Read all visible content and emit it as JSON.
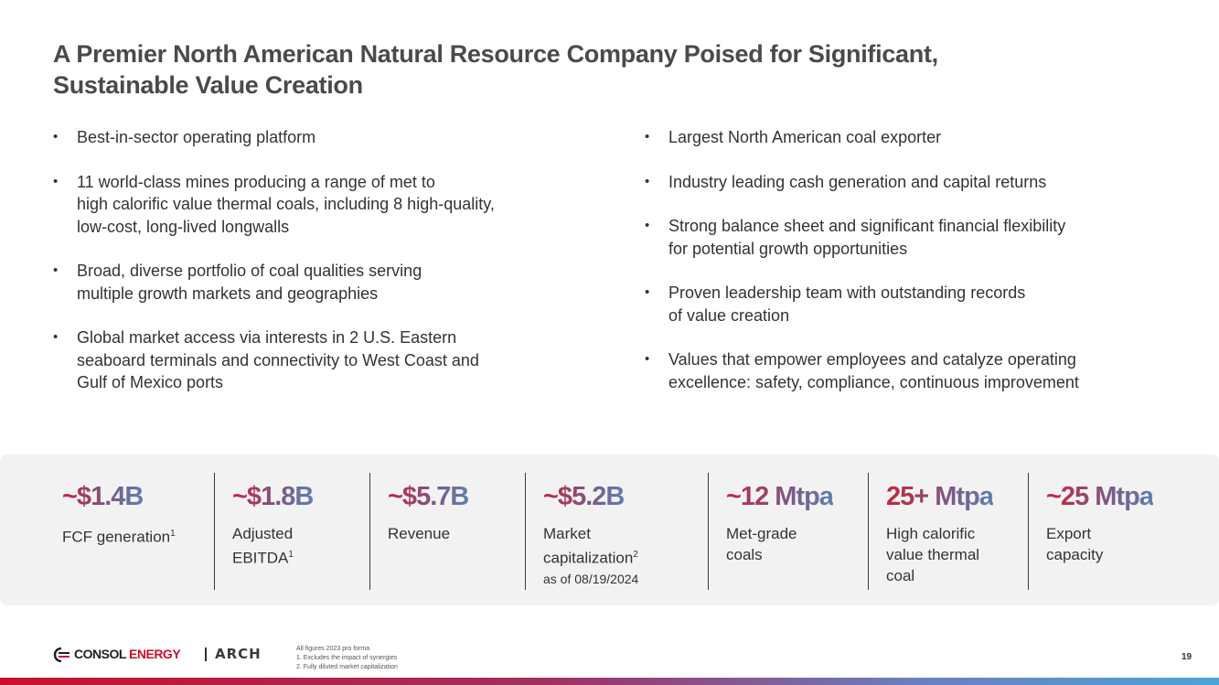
{
  "title": {
    "line1": "A Premier North American Natural Resource Company Poised for Significant,",
    "line2": "Sustainable Value Creation"
  },
  "left_bullets": [
    {
      "lines": [
        "Best-in-sector operating platform"
      ]
    },
    {
      "lines": [
        "11 world-class mines producing a range of met to",
        "high calorific value thermal coals, including 8 high-quality,",
        "low-cost, long-lived longwalls"
      ]
    },
    {
      "lines": [
        "Broad, diverse portfolio of coal qualities serving",
        "multiple growth markets and geographies"
      ]
    },
    {
      "lines": [
        "Global market access via interests in 2 U.S. Eastern",
        "seaboard terminals and connectivity to West Coast and",
        "Gulf of Mexico ports"
      ]
    }
  ],
  "right_bullets": [
    {
      "lines": [
        "Largest North American coal exporter"
      ]
    },
    {
      "lines": [
        "Industry leading cash generation and capital returns"
      ]
    },
    {
      "lines": [
        "Strong balance sheet and significant financial flexibility",
        "for potential growth opportunities"
      ]
    },
    {
      "lines": [
        "Proven leadership team with outstanding records",
        "of value creation"
      ]
    },
    {
      "lines": [
        "Values that empower employees and catalyze operating",
        "excellence: safety, compliance, continuous improvement"
      ]
    }
  ],
  "bullet_glyph": "•",
  "stats": [
    {
      "value": "~$1.4B",
      "line1": "FCF generation",
      "sup": "1"
    },
    {
      "value": "~$1.8B",
      "line1": "Adjusted",
      "line2": "EBITDA",
      "sup": "1"
    },
    {
      "value": "~$5.7B",
      "line1": "Revenue"
    },
    {
      "value": "~$5.2B",
      "line1": "Market",
      "line2": "capitalization",
      "sup": "2",
      "line3": "as of 08/19/2024"
    },
    {
      "value": "~12 Mtpa",
      "line1": "Met-grade",
      "line2": "coals"
    },
    {
      "value": "25+ Mtpa",
      "line1": "High calorific",
      "line2": "value thermal",
      "line3": "coal"
    },
    {
      "value": "~25 Mtpa",
      "line1": "Export",
      "line2": "capacity"
    }
  ],
  "footer": {
    "logo1_part1": "CONSOL",
    "logo1_part2": "ENERGY",
    "logo2": "ARCH",
    "notes": [
      "All figures 2023 pro forma",
      "1.  Excludes the impact of synergies",
      "2. Fully diluted market capitalization"
    ],
    "page_number": "19"
  },
  "colors": {
    "accent_red": "#c8243f",
    "accent_blue": "#5f7fb0",
    "panel_bg": "#f2f2f2"
  }
}
